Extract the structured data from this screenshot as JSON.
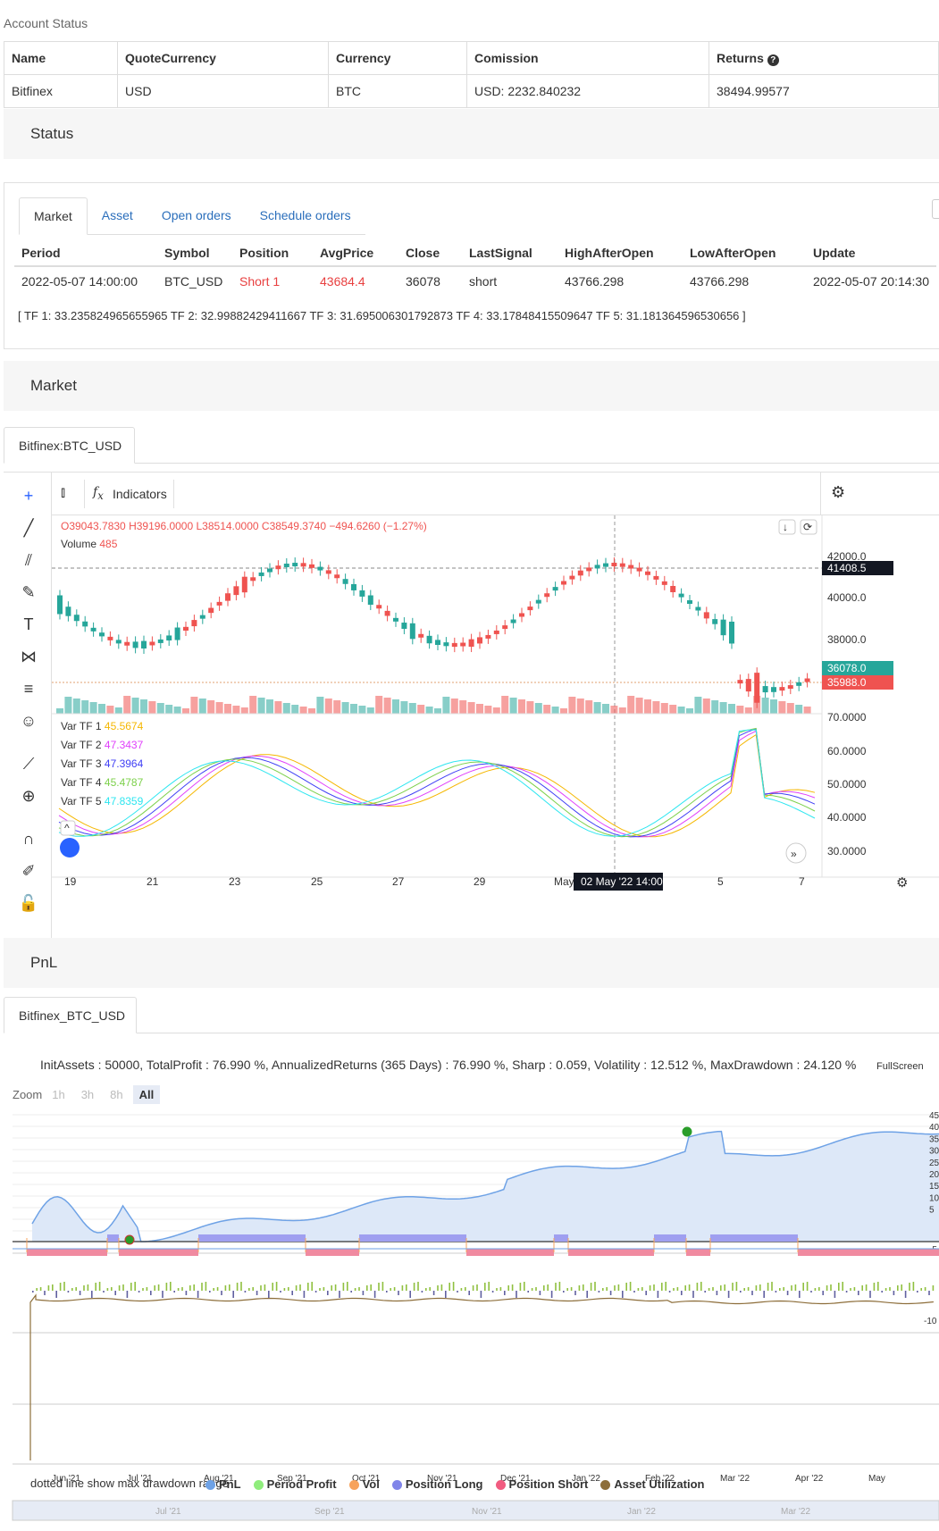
{
  "account": {
    "heading": "Account Status",
    "headers": [
      "Name",
      "QuoteCurrency",
      "Currency",
      "Comission",
      "Returns"
    ],
    "row": [
      "Bitfinex",
      "USD",
      "BTC",
      "USD: 2232.840232",
      "38494.99577"
    ]
  },
  "status": {
    "heading": "Status",
    "tabs": [
      "Market",
      "Asset",
      "Open orders",
      "Schedule orders"
    ],
    "headers": [
      "Period",
      "Symbol",
      "Position",
      "AvgPrice",
      "Close",
      "LastSignal",
      "HighAfterOpen",
      "LowAfterOpen",
      "Update"
    ],
    "row": [
      "2022-05-07 14:00:00",
      "BTC_USD",
      "Short 1",
      "43684.4",
      "36078",
      "short",
      "43766.298",
      "43766.298",
      "2022-05-07 20:14:30"
    ],
    "tf_line": "[ TF 1: 33.235824965655965 TF 2: 32.99882429411667 TF 3: 31.695006301792873 TF 4: 33.17848415509647 TF 5: 31.181364596530656 ]"
  },
  "market": {
    "heading": "Market",
    "tab": "Bitfinex:BTC_USD",
    "toolbar": {
      "indicators": "Indicators"
    },
    "ohlc": {
      "o": "O39043.7830",
      "h": "H39196.0000",
      "l": "L38514.0000",
      "c": "C38549.3740",
      "chg": "−494.6260 (−1.27%)"
    },
    "volume_label": "Volume",
    "volume_value": "485",
    "price_axis": [
      "42000.0",
      "40000.0",
      "38000.0"
    ],
    "price_tags": {
      "last": "41408.5",
      "close": "36078.0",
      "avg": "35988.0"
    },
    "osc_axis": [
      "70.0000",
      "60.0000",
      "50.0000",
      "40.0000",
      "30.0000"
    ],
    "var_tf": [
      {
        "label": "Var TF 1",
        "value": "45.5674",
        "color": "#f5b700"
      },
      {
        "label": "Var TF 2",
        "value": "47.3437",
        "color": "#e040fb"
      },
      {
        "label": "Var TF 3",
        "value": "47.3964",
        "color": "#3f3ff5"
      },
      {
        "label": "Var TF 4",
        "value": "45.4787",
        "color": "#7cd04a"
      },
      {
        "label": "Var TF 5",
        "value": "47.8359",
        "color": "#2ee6f0"
      }
    ],
    "x_ticks": [
      "19",
      "21",
      "23",
      "25",
      "27",
      "29",
      "May",
      "5",
      "7"
    ],
    "crosshair_label": "02 May '22  14:00",
    "up_color": "#26a69a",
    "down_color": "#ef5350"
  },
  "pnl": {
    "heading": "PnL",
    "tab": "Bitfinex_BTC_USD",
    "summary": "InitAssets : 50000, TotalProfit : 76.990 %, AnnualizedReturns (365 Days) : 76.990 %, Sharp : 0.059, Volatility : 12.512 %, MaxDrawdown : 24.120 %",
    "fullscreen": "FullScreen",
    "zoom_label": "Zoom",
    "zoom_buttons": [
      "1h",
      "3h",
      "8h",
      "All"
    ],
    "y_axis": [
      "45",
      "40",
      "35",
      "30",
      "25",
      "20",
      "15",
      "10",
      "5",
      "-5"
    ],
    "y_axis_2": [
      "-10"
    ],
    "x_axis": [
      "Jun '21",
      "Jul '21",
      "Aug '21",
      "Sep '21",
      "Oct '21",
      "Nov '21",
      "Dec '21",
      "Jan '22",
      "Feb '22",
      "Mar '22",
      "Apr '22",
      "May"
    ],
    "nav_axis": [
      "Jul '21",
      "Sep '21",
      "Nov '21",
      "Jan '22",
      "Mar '22"
    ],
    "note": "dotted line show max drawdown range",
    "legend": [
      {
        "label": "PnL",
        "color": "#6ea2e6"
      },
      {
        "label": "Period Profit",
        "color": "#90ed7d"
      },
      {
        "label": "Vol",
        "color": "#f7a35c"
      },
      {
        "label": "Position Long",
        "color": "#8085e9"
      },
      {
        "label": "Position Short",
        "color": "#f15c80"
      },
      {
        "label": "Asset Utilization",
        "color": "#8d6e3a"
      }
    ]
  }
}
